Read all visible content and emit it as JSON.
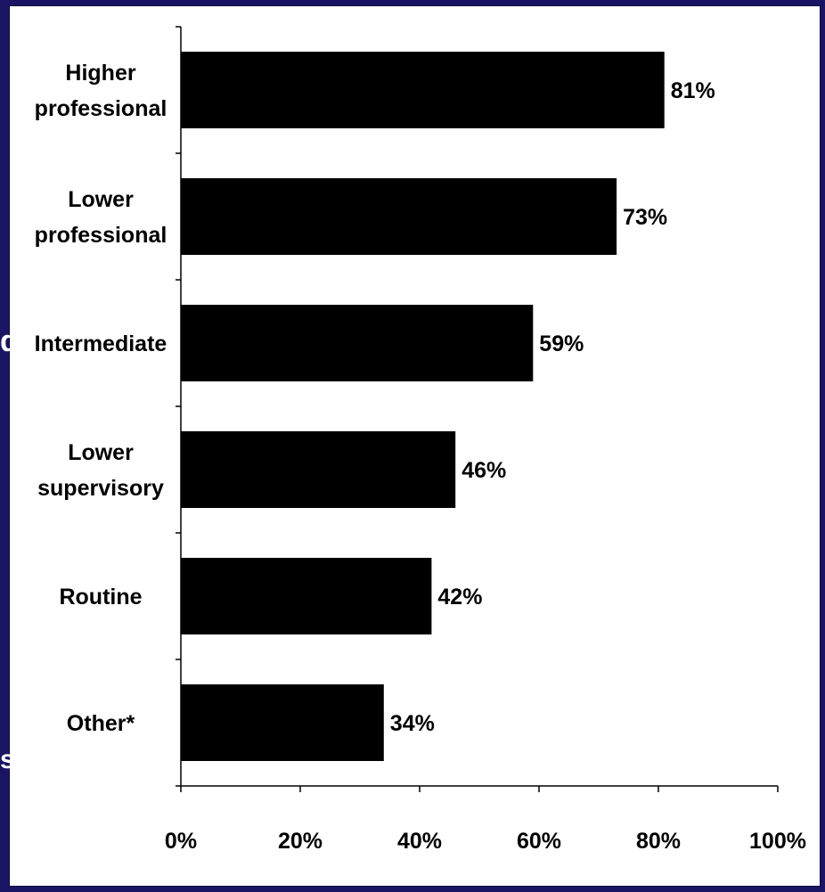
{
  "edge_fragments": {
    "left_mid": "d",
    "left_low": "s"
  },
  "chart_data": {
    "type": "bar",
    "orientation": "horizontal",
    "categories": [
      [
        "Higher",
        "professional"
      ],
      [
        "Lower",
        "professional"
      ],
      [
        "Intermediate"
      ],
      [
        "Lower",
        "supervisory"
      ],
      [
        "Routine"
      ],
      [
        "Other*"
      ]
    ],
    "values": [
      81,
      73,
      59,
      46,
      42,
      34
    ],
    "value_labels": [
      "81%",
      "73%",
      "59%",
      "46%",
      "42%",
      "34%"
    ],
    "xlim": [
      0,
      100
    ],
    "x_ticks": [
      "0%",
      "20%",
      "40%",
      "60%",
      "80%",
      "100%"
    ],
    "bar_color": "#000000",
    "background": "#ffffff",
    "frame_color": "#1a1464",
    "grid": false,
    "legend": "none"
  }
}
